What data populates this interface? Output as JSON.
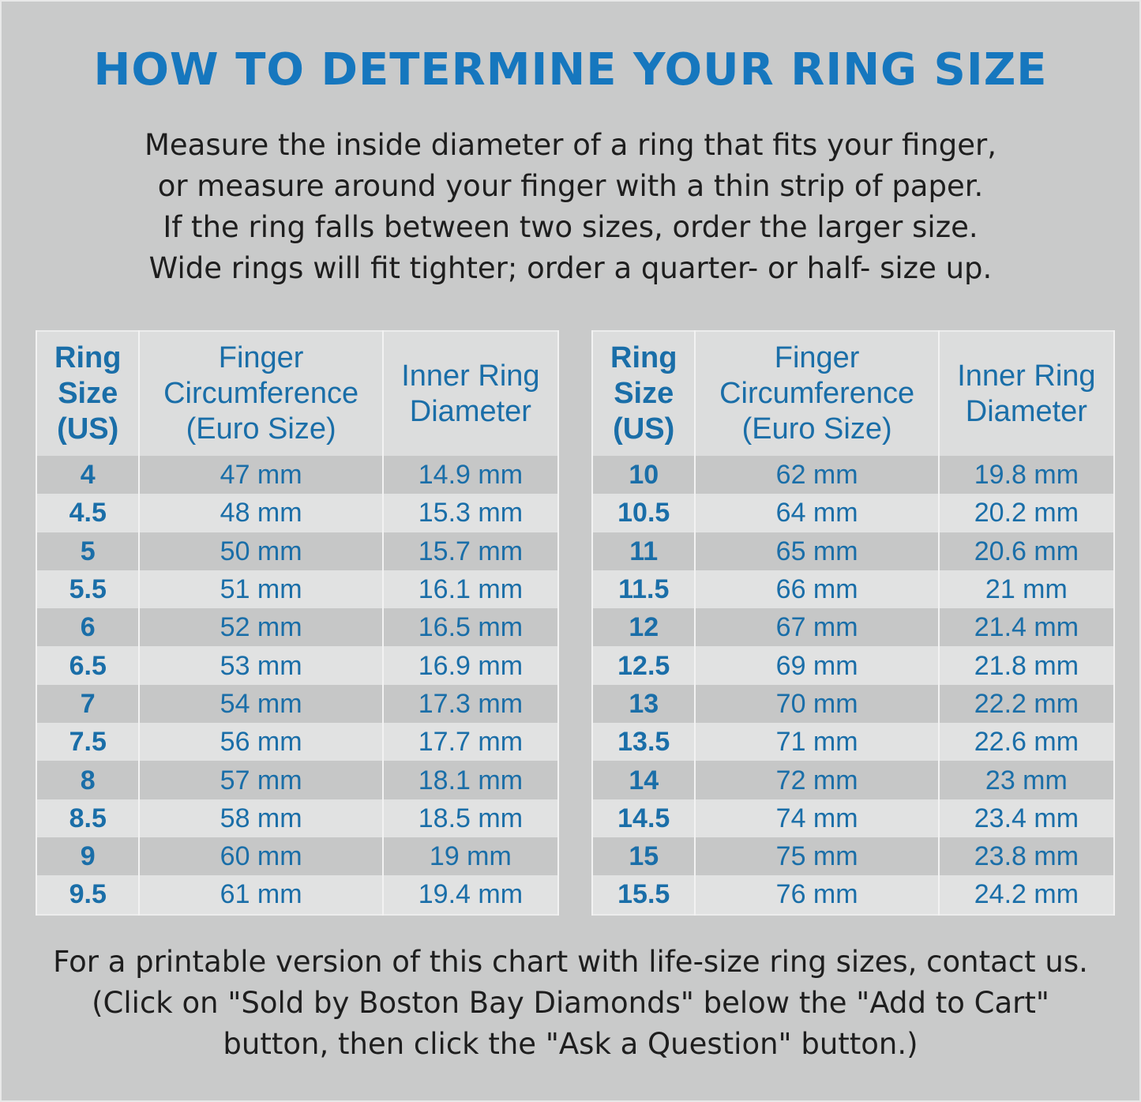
{
  "title": "HOW TO DETERMINE YOUR RING SIZE",
  "intro": [
    "Measure the inside diameter of a ring that fits your finger,",
    "or measure around your finger with a thin strip of paper.",
    "If the ring falls between two sizes, order the larger size.",
    "Wide rings will fit tighter; order a quarter- or half- size up."
  ],
  "colors": {
    "title": "#1677be",
    "table_text": "#1a6ea8",
    "background": "#c9caca"
  },
  "table_headers": {
    "size": [
      "Ring",
      "Size",
      "(US)"
    ],
    "circumference": [
      "Finger",
      "Circumference",
      "(Euro Size)"
    ],
    "diameter": [
      "Inner Ring",
      "Diameter"
    ]
  },
  "tables": [
    {
      "rows": [
        [
          "4",
          "47 mm",
          "14.9 mm"
        ],
        [
          "4.5",
          "48 mm",
          "15.3 mm"
        ],
        [
          "5",
          "50 mm",
          "15.7 mm"
        ],
        [
          "5.5",
          "51 mm",
          "16.1 mm"
        ],
        [
          "6",
          "52 mm",
          "16.5 mm"
        ],
        [
          "6.5",
          "53 mm",
          "16.9 mm"
        ],
        [
          "7",
          "54 mm",
          "17.3 mm"
        ],
        [
          "7.5",
          "56 mm",
          "17.7 mm"
        ],
        [
          "8",
          "57 mm",
          "18.1 mm"
        ],
        [
          "8.5",
          "58 mm",
          "18.5 mm"
        ],
        [
          "9",
          "60 mm",
          "19 mm"
        ],
        [
          "9.5",
          "61 mm",
          "19.4 mm"
        ]
      ]
    },
    {
      "rows": [
        [
          "10",
          "62 mm",
          "19.8 mm"
        ],
        [
          "10.5",
          "64 mm",
          "20.2 mm"
        ],
        [
          "11",
          "65 mm",
          "20.6 mm"
        ],
        [
          "11.5",
          "66 mm",
          "21 mm"
        ],
        [
          "12",
          "67 mm",
          "21.4 mm"
        ],
        [
          "12.5",
          "69 mm",
          "21.8 mm"
        ],
        [
          "13",
          "70 mm",
          "22.2 mm"
        ],
        [
          "13.5",
          "71 mm",
          "22.6 mm"
        ],
        [
          "14",
          "72 mm",
          "23 mm"
        ],
        [
          "14.5",
          "74 mm",
          "23.4 mm"
        ],
        [
          "15",
          "75 mm",
          "23.8 mm"
        ],
        [
          "15.5",
          "76 mm",
          "24.2 mm"
        ]
      ]
    }
  ],
  "footer": [
    "For a printable version of this chart with life-size ring sizes, contact us.",
    "(Click on \"Sold by Boston Bay Diamonds\" below the \"Add to Cart\"",
    "button, then click the \"Ask a Question\" button.)"
  ]
}
